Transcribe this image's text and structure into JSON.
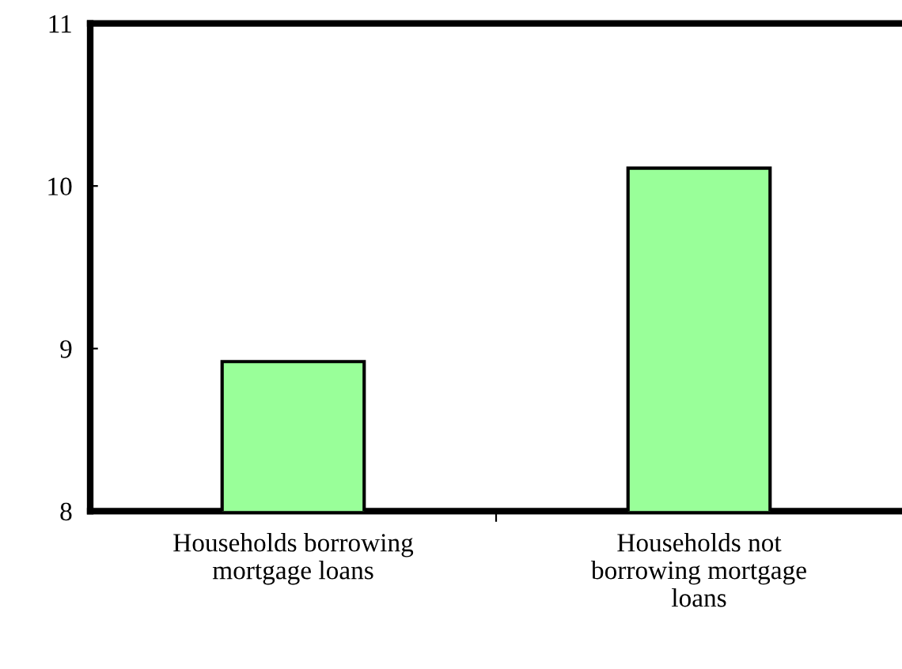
{
  "chart_data": {
    "type": "bar",
    "categories": [
      "Households borrowing\nmortgage loans",
      "Households not\nborrowing mortgage\nloans"
    ],
    "values": [
      8.92,
      10.11
    ],
    "color": "#99ff99",
    "ylim": [
      8,
      11
    ],
    "yticks": [
      8,
      9,
      10,
      11
    ],
    "grid": false,
    "legend": false
  }
}
